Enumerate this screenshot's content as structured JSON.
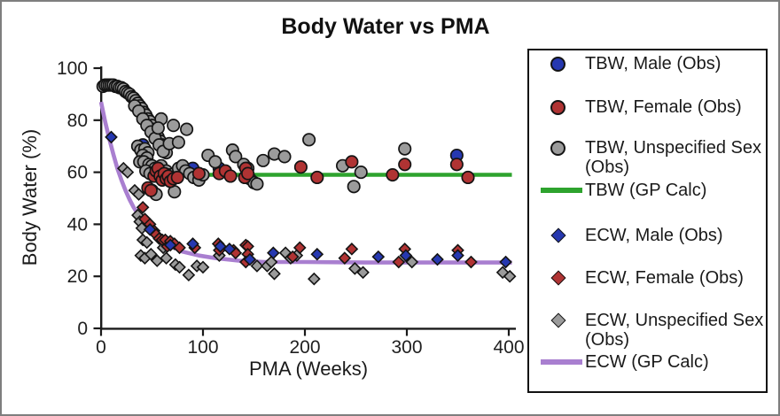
{
  "figure": {
    "title": "Body Water vs PMA"
  },
  "colors": {
    "blue": "#2638B0",
    "red": "#B03333",
    "gray": "#9B9B9B",
    "green": "#2EA32E",
    "purple": "#A97FD0",
    "marker_stroke": "#141414",
    "axis": "#1A1A1A",
    "tick_text": "#202020",
    "outer_border": "#7E7E7E",
    "legend_border": "#111111"
  },
  "legend": {
    "items": [
      {
        "label": "TBW, Male (Obs)",
        "marker": "circle",
        "color_key": "blue"
      },
      {
        "label": "TBW, Female (Obs)",
        "marker": "circle",
        "color_key": "red"
      },
      {
        "label": "TBW, Unspecified Sex (Obs)",
        "marker": "circle",
        "color_key": "gray"
      },
      {
        "label": "TBW (GP Calc)",
        "marker": "line",
        "color_key": "green"
      },
      {
        "label": "ECW, Male (Obs)",
        "marker": "diamond",
        "color_key": "blue"
      },
      {
        "label": "ECW, Female (Obs)",
        "marker": "diamond",
        "color_key": "red"
      },
      {
        "label": "ECW, Unspecified Sex (Obs)",
        "marker": "diamond",
        "color_key": "gray"
      },
      {
        "label": "ECW (GP Calc)",
        "marker": "line",
        "color_key": "purple"
      }
    ]
  },
  "chart_data": {
    "type": "scatter",
    "title": "Body Water vs PMA",
    "xlabel": "PMA (Weeks)",
    "ylabel": "Body Water (%)",
    "xlim": [
      0,
      400
    ],
    "ylim": [
      0,
      100
    ],
    "xticks": [
      0,
      100,
      200,
      300,
      400
    ],
    "yticks": [
      0,
      20,
      40,
      60,
      80,
      100
    ],
    "grid": false,
    "legend_position": "right",
    "series": [
      {
        "name": "TBW, Male (Obs)",
        "type": "scatter",
        "marker": "circle",
        "color_key": "blue",
        "z": 3,
        "points": [
          [
            41,
            70.5
          ],
          [
            54,
            59
          ],
          [
            90,
            61.5
          ],
          [
            116,
            61.5
          ],
          [
            349,
            66.5
          ]
        ]
      },
      {
        "name": "TBW, Female (Obs)",
        "type": "scatter",
        "marker": "circle",
        "color_key": "red",
        "z": 5,
        "points": [
          [
            46,
            54
          ],
          [
            49,
            53
          ],
          [
            52,
            58.5
          ],
          [
            54,
            60.5
          ],
          [
            56,
            61.5
          ],
          [
            58,
            58.5
          ],
          [
            60,
            57
          ],
          [
            62,
            59.5
          ],
          [
            64,
            57.5
          ],
          [
            66,
            58.5
          ],
          [
            68,
            56.5
          ],
          [
            71,
            57.5
          ],
          [
            75,
            58
          ],
          [
            96,
            59.5
          ],
          [
            116,
            59.5
          ],
          [
            122,
            60.5
          ],
          [
            127,
            58.5
          ],
          [
            141,
            58
          ],
          [
            142,
            61.5
          ],
          [
            144,
            59.5
          ],
          [
            196,
            62
          ],
          [
            212,
            58
          ],
          [
            246,
            64
          ],
          [
            286,
            59
          ],
          [
            298,
            63
          ],
          [
            349,
            63
          ],
          [
            360,
            58
          ]
        ]
      },
      {
        "name": "TBW, Unspecified Sex (Obs)",
        "type": "scatter",
        "marker": "circle",
        "color_key": "gray",
        "z": 4,
        "points": [
          [
            2,
            93
          ],
          [
            4,
            93.5
          ],
          [
            6,
            93.5
          ],
          [
            8,
            93.5
          ],
          [
            10,
            93.5
          ],
          [
            12,
            93.5
          ],
          [
            14,
            93
          ],
          [
            16,
            93
          ],
          [
            18,
            92.5
          ],
          [
            20,
            92.5
          ],
          [
            22,
            92
          ],
          [
            24,
            91
          ],
          [
            26,
            90.5
          ],
          [
            28,
            90
          ],
          [
            30,
            89
          ],
          [
            32,
            88.5
          ],
          [
            34,
            87.5
          ],
          [
            36,
            86.5
          ],
          [
            38,
            85.5
          ],
          [
            40,
            84.5
          ],
          [
            42,
            83
          ],
          [
            44,
            82
          ],
          [
            46,
            80.5
          ],
          [
            48,
            79.5
          ],
          [
            50,
            78
          ],
          [
            52,
            76.5
          ],
          [
            54,
            75
          ],
          [
            56,
            73.5
          ],
          [
            58,
            72
          ],
          [
            60,
            70.5
          ],
          [
            62,
            69
          ],
          [
            64,
            67.5
          ],
          [
            33,
            85.5
          ],
          [
            37,
            83.5
          ],
          [
            41,
            80.5
          ],
          [
            45,
            78
          ],
          [
            49,
            75.5
          ],
          [
            53,
            73
          ],
          [
            57,
            70.5
          ],
          [
            61,
            68
          ],
          [
            59,
            80.5
          ],
          [
            56,
            77
          ],
          [
            71,
            78
          ],
          [
            84,
            76.5
          ],
          [
            36,
            70
          ],
          [
            39,
            68.5
          ],
          [
            43,
            69
          ],
          [
            46,
            67.5
          ],
          [
            41,
            66.5
          ],
          [
            45,
            65.5
          ],
          [
            38,
            64
          ],
          [
            42,
            64
          ],
          [
            47,
            63
          ],
          [
            50,
            62.5
          ],
          [
            53,
            61.5
          ],
          [
            56,
            61.5
          ],
          [
            59,
            62.5
          ],
          [
            44,
            60.5
          ],
          [
            48,
            59.5
          ],
          [
            55,
            58.5
          ],
          [
            61,
            59.5
          ],
          [
            64,
            60.5
          ],
          [
            67,
            59
          ],
          [
            70,
            58
          ],
          [
            72,
            59.5
          ],
          [
            76,
            61.5
          ],
          [
            80,
            62.5
          ],
          [
            67,
            71
          ],
          [
            76,
            71.5
          ],
          [
            83,
            60.5
          ],
          [
            87,
            59.5
          ],
          [
            91,
            58
          ],
          [
            96,
            57
          ],
          [
            100,
            59
          ],
          [
            105,
            66.5
          ],
          [
            112,
            64
          ],
          [
            50,
            53
          ],
          [
            54,
            51.5
          ],
          [
            72,
            52.5
          ],
          [
            129,
            68.5
          ],
          [
            132,
            66
          ],
          [
            140,
            63
          ],
          [
            144,
            61.5
          ],
          [
            146,
            57.5
          ],
          [
            150,
            56
          ],
          [
            153,
            55.5
          ],
          [
            159,
            64.5
          ],
          [
            170,
            67
          ],
          [
            180,
            66
          ],
          [
            204,
            72.5
          ],
          [
            237,
            62.5
          ],
          [
            248,
            54.5
          ],
          [
            255,
            60
          ],
          [
            298,
            69
          ]
        ]
      },
      {
        "name": "TBW (GP Calc)",
        "type": "line",
        "color_key": "green",
        "z": 2,
        "points": [
          [
            98,
            59
          ],
          [
            403,
            59
          ]
        ]
      },
      {
        "name": "ECW, Male (Obs)",
        "type": "scatter",
        "marker": "diamond",
        "color_key": "blue",
        "z": 8,
        "points": [
          [
            10,
            73.5
          ],
          [
            48,
            38
          ],
          [
            68,
            32
          ],
          [
            90,
            32.5
          ],
          [
            117,
            31.5
          ],
          [
            126,
            30.5
          ],
          [
            146,
            26.5
          ],
          [
            169,
            29
          ],
          [
            212,
            28.5
          ],
          [
            272,
            27.5
          ],
          [
            299,
            28
          ],
          [
            330,
            26.5
          ],
          [
            350,
            28
          ],
          [
            397,
            25.5
          ]
        ]
      },
      {
        "name": "ECW, Female (Obs)",
        "type": "scatter",
        "marker": "diamond",
        "color_key": "red",
        "z": 7,
        "points": [
          [
            41,
            46.5
          ],
          [
            43,
            42
          ],
          [
            48,
            40
          ],
          [
            52,
            37.5
          ],
          [
            54,
            36
          ],
          [
            57,
            34.5
          ],
          [
            60,
            34
          ],
          [
            63,
            34
          ],
          [
            65,
            31.5
          ],
          [
            68,
            33.5
          ],
          [
            72,
            32.5
          ],
          [
            77,
            31
          ],
          [
            92,
            31
          ],
          [
            115,
            32.5
          ],
          [
            116,
            30
          ],
          [
            130,
            30
          ],
          [
            132,
            29
          ],
          [
            142,
            32
          ],
          [
            144,
            31.5
          ],
          [
            144,
            28.5
          ],
          [
            142,
            25.5
          ],
          [
            188,
            27.5
          ],
          [
            195,
            31
          ],
          [
            239,
            27
          ],
          [
            246,
            30.5
          ],
          [
            292,
            25.5
          ],
          [
            298,
            30.5
          ],
          [
            350,
            30
          ],
          [
            363,
            25.5
          ]
        ]
      },
      {
        "name": "ECW, Unspecified Sex (Obs)",
        "type": "scatter",
        "marker": "diamond",
        "color_key": "gray",
        "z": 6,
        "points": [
          [
            22,
            61.5
          ],
          [
            26,
            60
          ],
          [
            33,
            53
          ],
          [
            37,
            51.5
          ],
          [
            36,
            43.5
          ],
          [
            38,
            41
          ],
          [
            40,
            38.5
          ],
          [
            41,
            34
          ],
          [
            45,
            33
          ],
          [
            39,
            28
          ],
          [
            43,
            27
          ],
          [
            49,
            28.5
          ],
          [
            55,
            26
          ],
          [
            61,
            31
          ],
          [
            64,
            27
          ],
          [
            73,
            24.5
          ],
          [
            77,
            23.5
          ],
          [
            86,
            20.5
          ],
          [
            94,
            24
          ],
          [
            100,
            23.5
          ],
          [
            116,
            28
          ],
          [
            153,
            24
          ],
          [
            163,
            24
          ],
          [
            167,
            25.5
          ],
          [
            170,
            21
          ],
          [
            181,
            29
          ],
          [
            186,
            27
          ],
          [
            192,
            28
          ],
          [
            209,
            19
          ],
          [
            249,
            23
          ],
          [
            257,
            21.5
          ],
          [
            305,
            25.5
          ],
          [
            394,
            21.5
          ],
          [
            401,
            20
          ]
        ]
      },
      {
        "name": "ECW (GP Calc)",
        "type": "line",
        "color_key": "purple",
        "z": 1,
        "points": [
          [
            0,
            87
          ],
          [
            4,
            79.5
          ],
          [
            8,
            73
          ],
          [
            12,
            67
          ],
          [
            16,
            61.5
          ],
          [
            20,
            57
          ],
          [
            24,
            53
          ],
          [
            28,
            49.5
          ],
          [
            32,
            46.5
          ],
          [
            36,
            44
          ],
          [
            40,
            41.5
          ],
          [
            48,
            38
          ],
          [
            56,
            35
          ],
          [
            64,
            32.5
          ],
          [
            72,
            31
          ],
          [
            80,
            29.5
          ],
          [
            96,
            28
          ],
          [
            112,
            27
          ],
          [
            136,
            26
          ],
          [
            160,
            25.5
          ],
          [
            200,
            25.5
          ],
          [
            260,
            25.3
          ],
          [
            320,
            25.3
          ],
          [
            403,
            25.3
          ]
        ]
      }
    ]
  }
}
